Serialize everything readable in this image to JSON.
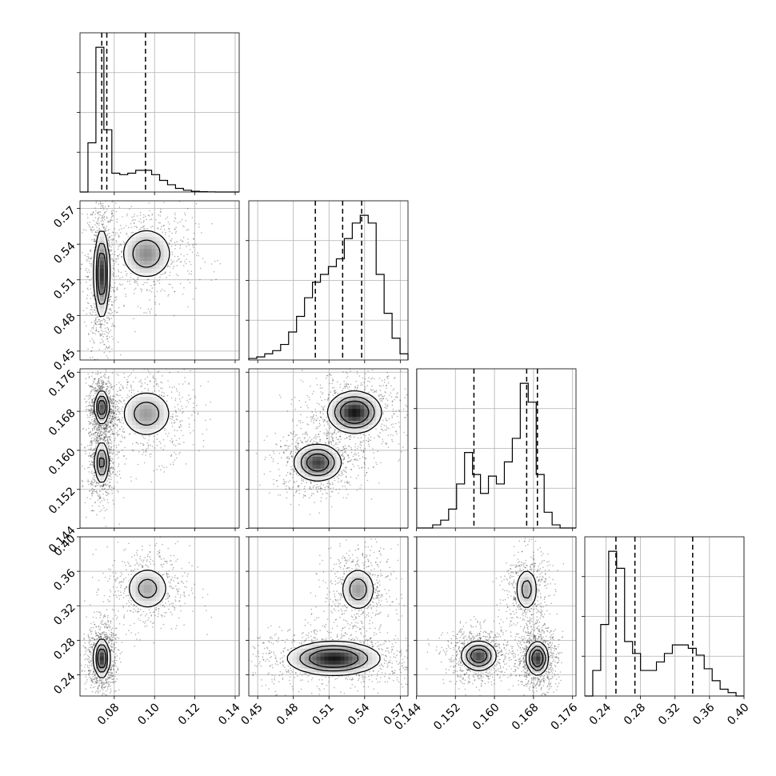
{
  "chart_data": {
    "type": "corner",
    "params": [
      {
        "id": "p0",
        "range": [
          0.063,
          0.142
        ],
        "ticks": [
          "0.08",
          "0.10",
          "0.12",
          "0.14"
        ],
        "quantiles": [
          0.0738,
          0.0763,
          0.0955
        ],
        "hist": [
          0.0,
          0.34,
          1.0,
          0.43,
          0.13,
          0.12,
          0.13,
          0.15,
          0.15,
          0.12,
          0.08,
          0.05,
          0.025,
          0.012,
          0.005,
          0.002,
          0.001,
          0.0,
          0.0,
          0.0
        ]
      },
      {
        "id": "p1",
        "range": [
          0.4425,
          0.5765
        ],
        "ticks": [
          "0.45",
          "0.48",
          "0.51",
          "0.54",
          "0.57"
        ],
        "quantiles": [
          0.4985,
          0.5215,
          0.5375
        ],
        "hist": [
          0.01,
          0.02,
          0.04,
          0.06,
          0.1,
          0.18,
          0.28,
          0.4,
          0.5,
          0.55,
          0.6,
          0.65,
          0.78,
          0.88,
          0.93,
          0.88,
          0.55,
          0.3,
          0.14,
          0.04
        ]
      },
      {
        "id": "p2",
        "range": [
          0.1441,
          0.1767
        ],
        "ticks": [
          "0.144",
          "0.152",
          "0.160",
          "0.168",
          "0.176"
        ],
        "quantiles": [
          0.1558,
          0.1666,
          0.1688
        ],
        "hist": [
          0.0,
          0.0,
          0.02,
          0.05,
          0.12,
          0.28,
          0.48,
          0.34,
          0.22,
          0.33,
          0.28,
          0.42,
          0.57,
          0.92,
          0.8,
          0.34,
          0.1,
          0.02,
          0.0,
          0.0
        ]
      },
      {
        "id": "p3",
        "range": [
          0.2154,
          0.4
        ],
        "ticks": [
          "0.24",
          "0.28",
          "0.32",
          "0.36",
          "0.40"
        ],
        "quantiles": [
          0.2515,
          0.2735,
          0.3405
        ],
        "hist": [
          0.0,
          0.15,
          0.42,
          0.85,
          0.75,
          0.32,
          0.25,
          0.15,
          0.15,
          0.2,
          0.25,
          0.3,
          0.3,
          0.28,
          0.24,
          0.16,
          0.09,
          0.04,
          0.02,
          0.0
        ]
      }
    ],
    "pairs": [
      {
        "x": 0,
        "y": 1,
        "blobs": [
          {
            "cx": 0.0738,
            "cy": 0.515,
            "sx": 0.0018,
            "sy": 0.018,
            "w": 1.0
          },
          {
            "cx": 0.096,
            "cy": 0.532,
            "sx": 0.0065,
            "sy": 0.011,
            "w": 0.55
          }
        ]
      },
      {
        "x": 0,
        "y": 2,
        "blobs": [
          {
            "cx": 0.0738,
            "cy": 0.1688,
            "sx": 0.0017,
            "sy": 0.0017,
            "w": 0.9
          },
          {
            "cx": 0.0738,
            "cy": 0.1575,
            "sx": 0.0018,
            "sy": 0.0022,
            "w": 0.7
          },
          {
            "cx": 0.096,
            "cy": 0.1675,
            "sx": 0.0065,
            "sy": 0.0025,
            "w": 0.5
          }
        ]
      },
      {
        "x": 1,
        "y": 2,
        "blobs": [
          {
            "cx": 0.5315,
            "cy": 0.1678,
            "sx": 0.011,
            "sy": 0.0021,
            "w": 1.0
          },
          {
            "cx": 0.5005,
            "cy": 0.1575,
            "sx": 0.01,
            "sy": 0.0019,
            "w": 0.85
          }
        ]
      },
      {
        "x": 0,
        "y": 3,
        "blobs": [
          {
            "cx": 0.0738,
            "cy": 0.259,
            "sx": 0.0019,
            "sy": 0.011,
            "w": 1.0
          },
          {
            "cx": 0.0965,
            "cy": 0.34,
            "sx": 0.0055,
            "sy": 0.013,
            "w": 0.45
          }
        ]
      },
      {
        "x": 1,
        "y": 3,
        "blobs": [
          {
            "cx": 0.514,
            "cy": 0.259,
            "sx": 0.019,
            "sy": 0.0095,
            "w": 1.0
          },
          {
            "cx": 0.5345,
            "cy": 0.339,
            "sx": 0.0075,
            "sy": 0.013,
            "w": 0.5
          }
        ]
      },
      {
        "x": 2,
        "y": 3,
        "blobs": [
          {
            "cx": 0.1688,
            "cy": 0.259,
            "sx": 0.0011,
            "sy": 0.0095,
            "w": 0.95
          },
          {
            "cx": 0.1568,
            "cy": 0.262,
            "sx": 0.0018,
            "sy": 0.0085,
            "w": 0.85
          },
          {
            "cx": 0.1666,
            "cy": 0.339,
            "sx": 0.0012,
            "sy": 0.013,
            "w": 0.45
          }
        ]
      }
    ],
    "grid": true,
    "legend": "none"
  }
}
